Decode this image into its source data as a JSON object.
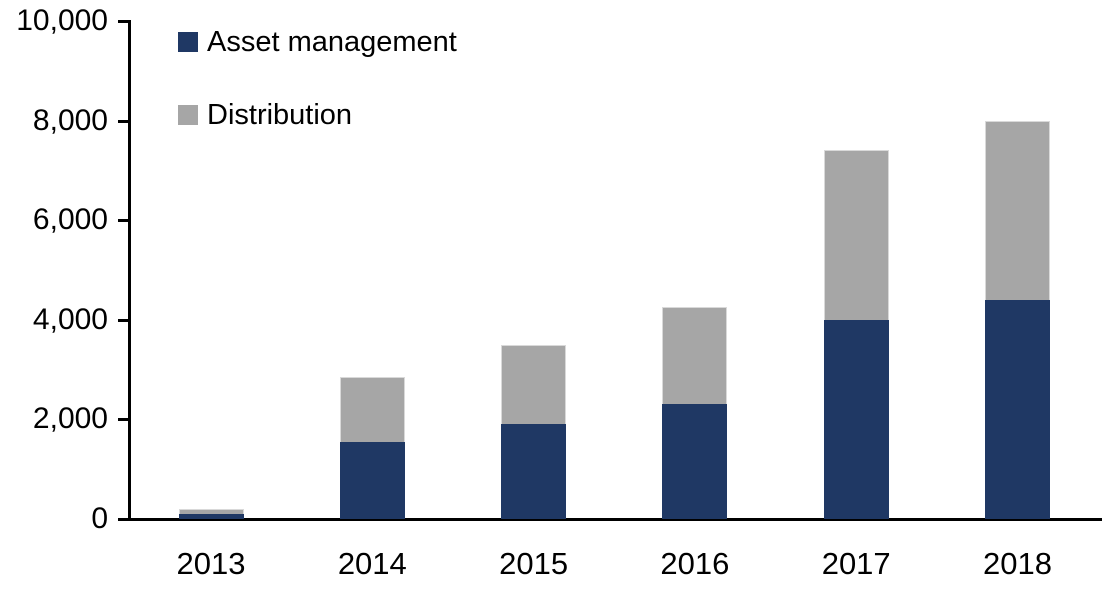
{
  "chart_data": {
    "type": "bar",
    "stacked": true,
    "title": "",
    "xlabel": "",
    "ylabel": "",
    "categories": [
      "2013",
      "2014",
      "2015",
      "2016",
      "2017",
      "2018"
    ],
    "series": [
      {
        "name": "Asset management",
        "color": "#1F3864",
        "values": [
          100,
          1550,
          1900,
          2300,
          4000,
          4400
        ]
      },
      {
        "name": "Distribution",
        "color": "#A6A6A6",
        "values": [
          100,
          1300,
          1600,
          1950,
          3400,
          3600
        ]
      }
    ],
    "totals": [
      200,
      2850,
      3500,
      4250,
      7400,
      8000
    ],
    "ylim": [
      0,
      10000
    ],
    "ytick_interval": 2000,
    "yticks": [
      0,
      2000,
      4000,
      6000,
      8000,
      10000
    ],
    "ytick_labels": [
      "0",
      "2,000",
      "4,000",
      "6,000",
      "8,000",
      "10,000"
    ],
    "grid": false,
    "legend_position": "top-left",
    "axis_color": "#000000",
    "background_color": "#FFFFFF"
  }
}
